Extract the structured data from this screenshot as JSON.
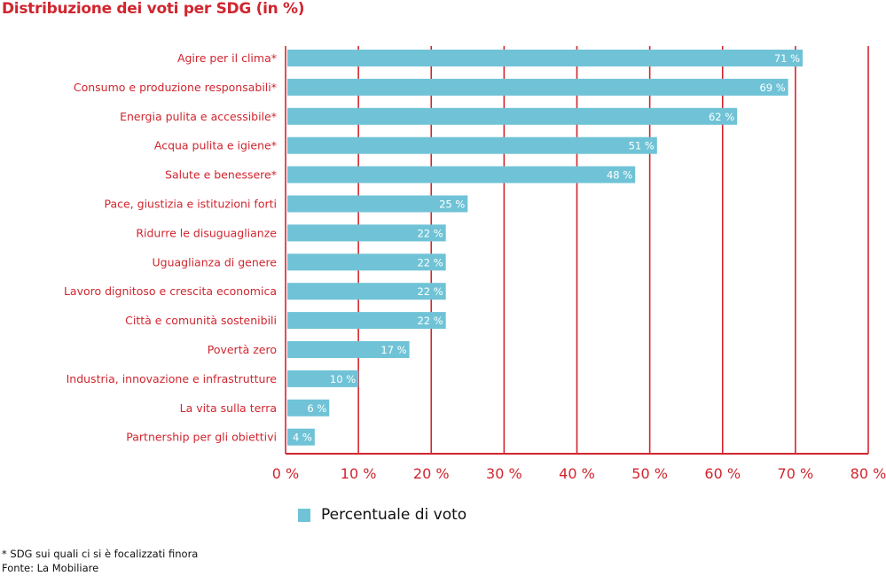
{
  "chart_data": {
    "type": "bar",
    "orientation": "horizontal",
    "title": "Distribuzione dei voti per SDG (in %)",
    "categories": [
      "Agire per il clima*",
      "Consumo e produzione responsabili*",
      "Energia pulita e accessibile*",
      "Acqua pulita e igiene*",
      "Salute e benessere*",
      "Pace, giustizia e istituzioni forti",
      "Ridurre le disuguaglianze",
      "Uguaglianza di genere",
      "Lavoro dignitoso e crescita economica",
      "Città e comunità sostenibili",
      "Povertà zero",
      "Industria, innovazione e infrastrutture",
      "La vita sulla terra",
      "Partnership per gli obiettivi"
    ],
    "series": [
      {
        "name": "Percentuale di voto",
        "values": [
          71,
          69,
          62,
          51,
          48,
          25,
          22,
          22,
          22,
          22,
          17,
          10,
          6,
          4
        ]
      }
    ],
    "data_labels": [
      "71 %",
      "69 %",
      "62 %",
      "51 %",
      "48 %",
      "25 %",
      "22 %",
      "22 %",
      "22 %",
      "22 %",
      "17 %",
      "10 %",
      "6 %",
      "4 %"
    ],
    "xlim": [
      0,
      80
    ],
    "xticks": [
      0,
      10,
      20,
      30,
      40,
      50,
      60,
      70,
      80
    ],
    "xtick_labels": [
      "0 %",
      "10 %",
      "20 %",
      "30 %",
      "40 %",
      "50 %",
      "60 %",
      "70 %",
      "80 %"
    ],
    "grid": "vertical",
    "legend_position": "bottom",
    "colors": {
      "bar": "#70c3d6",
      "axis": "#d0262f",
      "text": "#d0262f"
    }
  },
  "footnotes": [
    "* SDG sui quali ci si è focalizzati finora",
    "Fonte: La Mobiliare"
  ]
}
